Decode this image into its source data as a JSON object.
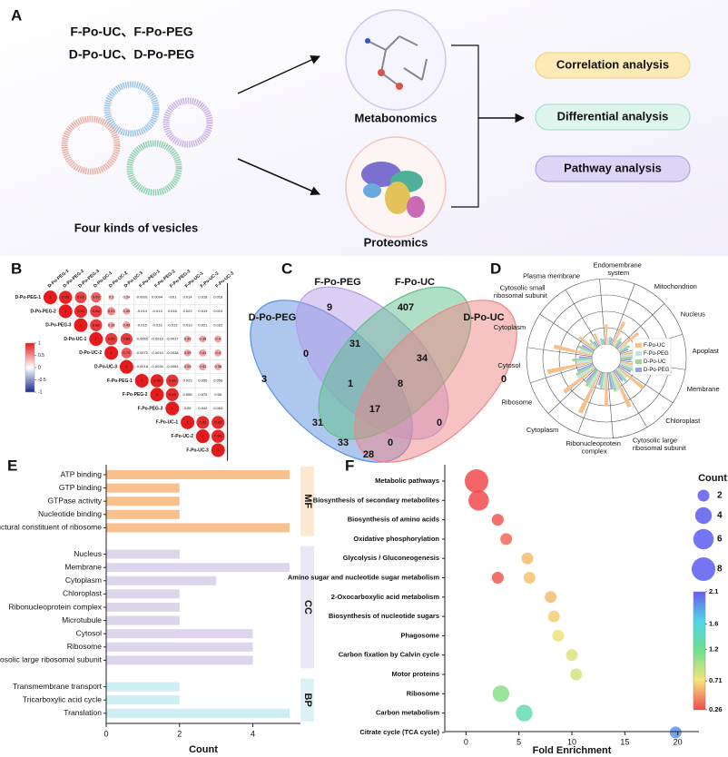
{
  "panel_labels": [
    "A",
    "B",
    "C",
    "D",
    "E",
    "F"
  ],
  "panel_a": {
    "vesicle_names": [
      "F-Po-UC、F-Po-PEG",
      "D-Po-UC、D-Po-PEG"
    ],
    "vesicle_caption": "Four kinds of vesicles",
    "omics": [
      "Metabonomics",
      "Proteomics"
    ],
    "analyses": [
      "Correlation analysis",
      "Differential analysis",
      "Pathway analysis"
    ]
  },
  "chart_data": [
    {
      "type": "heatmap",
      "labels": [
        "D-Po-PEG-1",
        "D-Po-PEG-2",
        "D-Po-PEG-3",
        "D-Po-UC-1",
        "D-Po-UC-2",
        "D-Po-UC-3",
        "F-Po-PEG-1",
        "F-Po-PEG-2",
        "F-Po-PEG-3",
        "F-Po-UC-1",
        "F-Po-UC-2",
        "F-Po-UC-3"
      ],
      "values": [
        [
          1,
          0.95,
          0.82,
          0.69,
          0.3,
          0.24,
          -0.0091,
          0.0094,
          -0.01,
          0.014,
          0.018,
          0.018
        ],
        [
          null,
          1,
          0.93,
          0.85,
          0.51,
          0.39,
          -0.014,
          -0.013,
          0.016,
          0.022,
          0.019,
          0.019
        ],
        [
          null,
          null,
          1,
          0.86,
          0.38,
          0.43,
          -0.015,
          -0.016,
          -0.013,
          0.019,
          0.021,
          0.022
        ],
        [
          null,
          null,
          null,
          1,
          0.86,
          0.85,
          -0.0065,
          -0.0013,
          -0.0017,
          0.39,
          0.38,
          0.4
        ],
        [
          null,
          null,
          null,
          null,
          1,
          0.72,
          -0.0072,
          -0.0014,
          -0.0038,
          0.39,
          0.41,
          0.4
        ],
        [
          null,
          null,
          null,
          null,
          null,
          1,
          -0.0018,
          -0.0034,
          -0.0084,
          0.39,
          0.41,
          0.38
        ],
        [
          null,
          null,
          null,
          null,
          null,
          null,
          1,
          0.96,
          0.88,
          0.022,
          0.055,
          0.056
        ],
        [
          null,
          null,
          null,
          null,
          null,
          null,
          null,
          1,
          0.93,
          0.056,
          0.075,
          0.06
        ],
        [
          null,
          null,
          null,
          null,
          null,
          null,
          null,
          null,
          1,
          0.06,
          0.042,
          0.063
        ],
        [
          null,
          null,
          null,
          null,
          null,
          null,
          null,
          null,
          null,
          1,
          0.92,
          0.93
        ],
        [
          null,
          null,
          null,
          null,
          null,
          null,
          null,
          null,
          null,
          null,
          1,
          0.95
        ],
        [
          null,
          null,
          null,
          null,
          null,
          null,
          null,
          null,
          null,
          null,
          null,
          1
        ]
      ],
      "clim": [
        -1,
        1
      ],
      "cticks": [
        -1,
        -0.5,
        0,
        0.5,
        1
      ],
      "colorscale": [
        "#1b2a8f",
        "#ffffff",
        "#e41a1c"
      ]
    },
    {
      "type": "venn",
      "sets": [
        "D-Po-PEG",
        "F-Po-PEG",
        "F-Po-UC",
        "D-Po-UC"
      ],
      "colors": [
        "#5b8fe0",
        "#b59de8",
        "#5fc08a",
        "#ee8686"
      ],
      "values": [
        9,
        407,
        3,
        0,
        0,
        31,
        34,
        1,
        8,
        17,
        31,
        0,
        33,
        0,
        28
      ]
    },
    {
      "type": "radial_bar",
      "categories": [
        "Endomembrane system",
        "Mitochondrion",
        "Nucleus",
        "Apoplast",
        "Membrane",
        "Chloroplast",
        "Cytosolic large ribosomal subunit",
        "Ribonucleoprotein complex",
        "Cytoplasm",
        "Ribosome",
        "Cytosol",
        "Cytoplasm",
        "Cytosolic small ribosomal subunit",
        "Plasma membrane"
      ],
      "series": [
        {
          "name": "F-Po-UC",
          "color": "#f7bf8b",
          "values": [
            1.5,
            2,
            2,
            2.5,
            4,
            2.5,
            3,
            2.5,
            3.5,
            3,
            3.5,
            3,
            1.5,
            1
          ]
        },
        {
          "name": "F-Po-PEG",
          "color": "#bfe6e0",
          "values": [
            0.5,
            0.6,
            0.8,
            1,
            1.2,
            1,
            1.5,
            1.2,
            1.5,
            1.5,
            1.2,
            1,
            0.6,
            0.4
          ]
        },
        {
          "name": "D-Po-UC",
          "color": "#9fd49a",
          "values": [
            0.6,
            0.8,
            0.9,
            1,
            1.5,
            1.2,
            1.5,
            1.2,
            1.5,
            1.5,
            1.5,
            1.2,
            0.8,
            0.5
          ]
        },
        {
          "name": "D-Po-PEG",
          "color": "#8fa6e8",
          "values": [
            0.5,
            0.6,
            0.7,
            0.8,
            1,
            1,
            1.2,
            1,
            1.2,
            1.2,
            1,
            1,
            0.5,
            0.4
          ]
        }
      ],
      "rlim": [
        0,
        5
      ]
    },
    {
      "type": "bar",
      "orientation": "horizontal",
      "groups": [
        {
          "name": "MF",
          "color": "#f8c08a",
          "strip_color": "#fde9cf",
          "categories": [
            "ATP binding",
            "GTP binding",
            "GTPase activity",
            "Nucleotide binding",
            "Structural constituent of ribosome"
          ],
          "values": [
            5,
            2,
            2,
            2,
            5
          ]
        },
        {
          "name": "CC",
          "color": "#dcd5ec",
          "strip_color": "#ebe6f4",
          "categories": [
            "Nucleus",
            "Membrane",
            "Cytoplasm",
            "Chloroplast",
            "Ribonucleoprotein complex",
            "Microtubule",
            "Cytosol",
            "Ribosome",
            "Cytosolic large ribosomal subunit"
          ],
          "values": [
            2,
            5,
            3,
            2,
            2,
            2,
            4,
            4,
            4
          ]
        },
        {
          "name": "BP",
          "color": "#cdeef3",
          "strip_color": "#dbf1f4",
          "categories": [
            "Transmembrane transport",
            "Tricarboxylic acid cycle",
            "Translation"
          ],
          "values": [
            2,
            2,
            5
          ]
        }
      ],
      "xlim": [
        0,
        5.3
      ],
      "xticks": [
        0,
        2,
        4
      ],
      "xlabel": "Count"
    },
    {
      "type": "bubble",
      "categories": [
        "Metabolic pathways",
        "Biosynthesis of secondary metabolites",
        "Biosynthesis of amino acids",
        "Oxidative phosphorylation",
        "Glycolysis / Gluconeogenesis",
        "Amino sugar and nucleotide sugar metabolism",
        "2-Oxocarboxylic acid metabolism",
        "Biosynthesis of nucleotide sugars",
        "Phagosome",
        "Carbon fixation by Calvin cycle",
        "Motor proteins",
        "Ribosome",
        "Carbon metabolism",
        "Citrate cycle (TCA cycle)"
      ],
      "y": [
        "Metabolic pathways",
        "Biosynthesis of secondary metabolites",
        "Biosynthesis of amino acids",
        "Oxidative phosphorylation",
        "Glycolysis / Gluconeogenesis",
        "Amino sugar and nucleotide sugar metabolism",
        "Amino sugar and nucleotide sugar metabolism",
        "2-Oxocarboxylic acid metabolism",
        "Biosynthesis of nucleotide sugars",
        "Phagosome",
        "Carbon fixation by Calvin cycle",
        "Motor proteins",
        "Ribosome",
        "Carbon metabolism",
        "Citrate cycle (TCA cycle)"
      ],
      "x": [
        1,
        1.2,
        3,
        3.8,
        5.8,
        3,
        6,
        8,
        8.3,
        8.7,
        10,
        10.4,
        3.3,
        5.5,
        19.8
      ],
      "size": [
        8,
        6,
        2,
        2,
        2,
        2,
        2,
        2,
        2,
        2,
        2,
        2,
        4,
        4,
        2
      ],
      "color_values": [
        0.26,
        0.26,
        0.3,
        0.35,
        0.6,
        0.3,
        0.62,
        0.6,
        0.65,
        0.75,
        0.8,
        0.85,
        1.1,
        1.35,
        1.9
      ],
      "xlim": [
        -2,
        22
      ],
      "xticks": [
        0,
        5,
        10,
        15,
        20
      ],
      "xlabel": "Fold Enrichment",
      "size_title": "Count",
      "size_ticks": [
        2,
        4,
        6,
        8
      ],
      "clim": [
        0.26,
        2.1
      ],
      "cticks": [
        0.26,
        0.71,
        1.2,
        1.6,
        2.1
      ],
      "colorscale": [
        "#f24a4d",
        "#f6e47a",
        "#6fe08e",
        "#4fd6e6",
        "#6a5cf0"
      ]
    }
  ]
}
